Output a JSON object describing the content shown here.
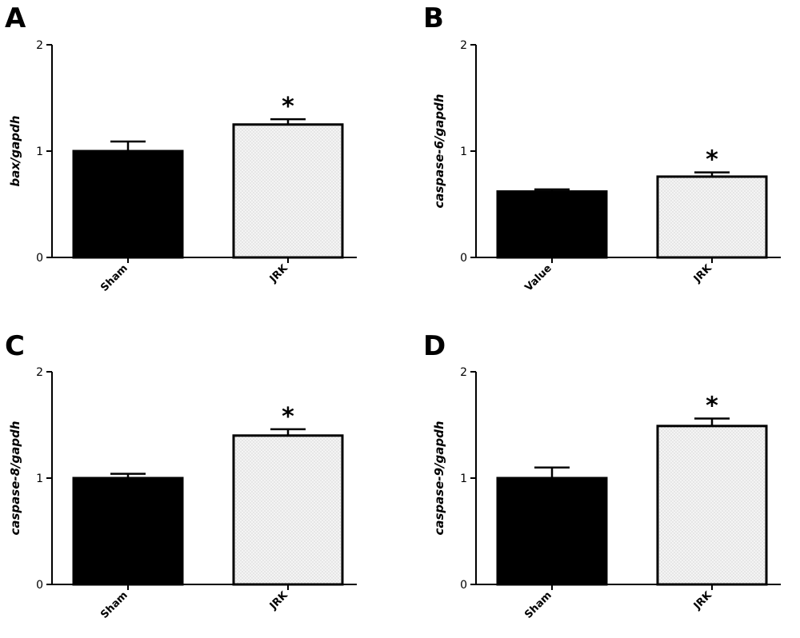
{
  "chart_data": [
    {
      "panel": "A",
      "type": "bar",
      "ylabel": "bax/gapdh",
      "categories": [
        "Sham",
        "JRK"
      ],
      "values": [
        1.0,
        1.25
      ],
      "errors": [
        0.09,
        0.05
      ],
      "significance": [
        "",
        "*"
      ],
      "ylim": [
        0,
        2
      ],
      "yticks": [
        "0",
        "1",
        "2"
      ],
      "fill_patterns": [
        "solid-black",
        "light-dotted"
      ]
    },
    {
      "panel": "B",
      "type": "bar",
      "ylabel": "caspase-6/gapdh",
      "categories": [
        "Value",
        "JRK"
      ],
      "values": [
        0.62,
        0.76
      ],
      "errors": [
        0.02,
        0.04
      ],
      "significance": [
        "",
        "*"
      ],
      "ylim": [
        0,
        2
      ],
      "yticks": [
        "0",
        "1",
        "2"
      ],
      "fill_patterns": [
        "solid-black",
        "light-dotted"
      ]
    },
    {
      "panel": "C",
      "type": "bar",
      "ylabel": "caspase-8/gapdh",
      "categories": [
        "Sham",
        "JRK"
      ],
      "values": [
        1.0,
        1.4
      ],
      "errors": [
        0.04,
        0.06
      ],
      "significance": [
        "",
        "*"
      ],
      "ylim": [
        0,
        2
      ],
      "yticks": [
        "0",
        "1",
        "2"
      ],
      "fill_patterns": [
        "solid-black",
        "light-dotted"
      ]
    },
    {
      "panel": "D",
      "type": "bar",
      "ylabel": "caspase-9/gapdh",
      "categories": [
        "Sham",
        "JRK"
      ],
      "values": [
        1.0,
        1.49
      ],
      "errors": [
        0.1,
        0.07
      ],
      "significance": [
        "",
        "*"
      ],
      "ylim": [
        0,
        2
      ],
      "yticks": [
        "0",
        "1",
        "2"
      ],
      "fill_patterns": [
        "solid-black",
        "light-dotted"
      ]
    }
  ],
  "colors": {
    "bar_dark": "#000000",
    "bar_light": "#f4f4f4",
    "dot": "#c4c4c4",
    "axis": "#000000"
  }
}
